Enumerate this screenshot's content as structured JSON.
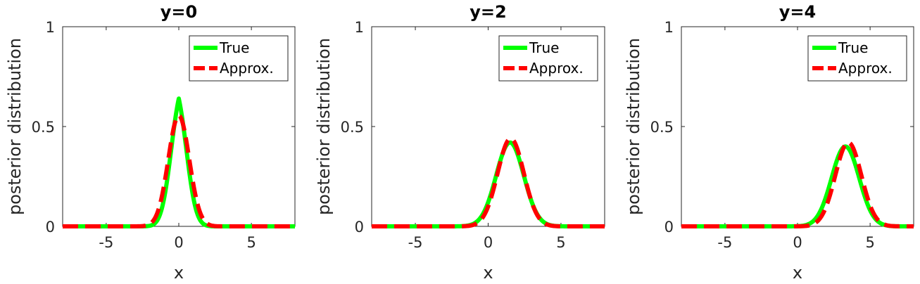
{
  "chart_data": [
    {
      "type": "line",
      "title": "y=0",
      "xlabel": "x",
      "ylabel": "posterior distribution",
      "xlim": [
        -8,
        8
      ],
      "ylim": [
        0,
        1
      ],
      "xticks": [
        -5,
        0,
        5
      ],
      "yticks": [
        0,
        0.5,
        1
      ],
      "legend_position": "top-right",
      "grid": false,
      "series": [
        {
          "name": "True",
          "color": "#00ff00",
          "style": "solid",
          "mean": 0.0,
          "std": 0.62,
          "peak": 0.64,
          "cusp": true
        },
        {
          "name": "Approx.",
          "color": "#ff0000",
          "style": "dashed",
          "mean": 0.0,
          "std": 0.72,
          "peak": 0.555,
          "cusp": false
        }
      ]
    },
    {
      "type": "line",
      "title": "y=2",
      "xlabel": "x",
      "ylabel": "posterior distribution",
      "xlim": [
        -8,
        8
      ],
      "ylim": [
        0,
        1
      ],
      "xticks": [
        -5,
        0,
        5
      ],
      "yticks": [
        0,
        0.5,
        1
      ],
      "legend_position": "top-right",
      "grid": false,
      "series": [
        {
          "name": "True",
          "color": "#00ff00",
          "style": "solid",
          "mean": 1.5,
          "std": 0.95,
          "peak": 0.42,
          "cusp": false
        },
        {
          "name": "Approx.",
          "color": "#ff0000",
          "style": "dashed",
          "mean": 1.55,
          "std": 0.9,
          "peak": 0.44,
          "cusp": false
        }
      ]
    },
    {
      "type": "line",
      "title": "y=4",
      "xlabel": "x",
      "ylabel": "posterior distribution",
      "xlim": [
        -8,
        8
      ],
      "ylim": [
        0,
        1
      ],
      "xticks": [
        -5,
        0,
        5
      ],
      "yticks": [
        0,
        0.5,
        1
      ],
      "legend_position": "top-right",
      "grid": false,
      "series": [
        {
          "name": "True",
          "color": "#00ff00",
          "style": "solid",
          "mean": 3.3,
          "std": 0.95,
          "peak": 0.4,
          "cusp": false
        },
        {
          "name": "Approx.",
          "color": "#ff0000",
          "style": "dashed",
          "mean": 3.5,
          "std": 0.9,
          "peak": 0.42,
          "cusp": false
        }
      ]
    }
  ]
}
